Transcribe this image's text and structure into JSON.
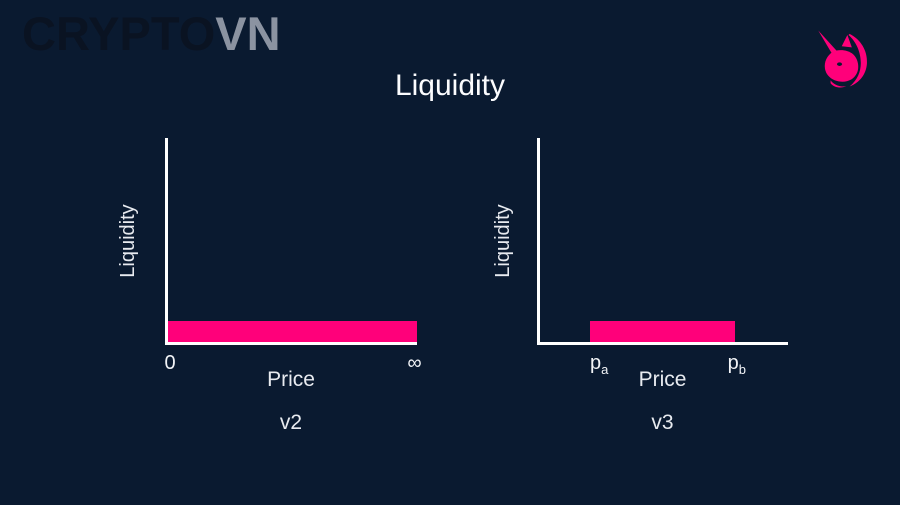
{
  "brand": {
    "crypto": "CRYPTO",
    "vn": "VN"
  },
  "title": "Liquidity",
  "colors": {
    "background": "#0a1a30",
    "accent_pink": "#ff007a",
    "axis_white": "#ffffff",
    "text_white": "#f2f4f7",
    "brand_dark": "#0a1322",
    "brand_gray": "#8b93a1"
  },
  "icons": {
    "top_right": "uniswap-unicorn-icon"
  },
  "chart_data": [
    {
      "type": "area",
      "title": "v2",
      "xlabel": "Price",
      "ylabel": "Liquidity",
      "color": "#ff007a",
      "band": {
        "x_start_frac": 0.012,
        "x_end_frac": 1.0,
        "height_frac": 0.102
      },
      "ticks": [
        {
          "base": "0",
          "sub": "",
          "frac": 0.02
        },
        {
          "base": "∞",
          "sub": "",
          "frac": 0.99
        }
      ]
    },
    {
      "type": "area",
      "title": "v3",
      "xlabel": "Price",
      "ylabel": "Liquidity",
      "color": "#ff007a",
      "band": {
        "x_start_frac": 0.212,
        "x_end_frac": 0.788,
        "height_frac": 0.102
      },
      "ticks": [
        {
          "base": "p",
          "sub": "a",
          "frac": 0.248
        },
        {
          "base": "p",
          "sub": "b",
          "frac": 0.796
        }
      ]
    }
  ]
}
